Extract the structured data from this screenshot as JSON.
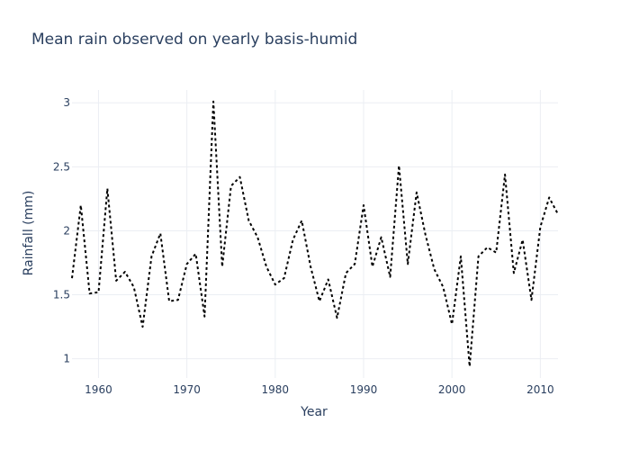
{
  "chart_data": {
    "type": "line",
    "title": "Mean rain observed on yearly basis-humid",
    "xlabel": "Year",
    "ylabel": "Rainfall (mm)",
    "xlim": [
      1957,
      2012
    ],
    "ylim": [
      0.85,
      3.1
    ],
    "x_ticks": [
      1960,
      1970,
      1980,
      1990,
      2000,
      2010
    ],
    "y_ticks": [
      1,
      1.5,
      2,
      2.5,
      3
    ],
    "grid": true,
    "line_color": "#000000",
    "line_style": "dotted",
    "series": [
      {
        "x": [
          1957,
          1958,
          1959,
          1960,
          1961,
          1962,
          1963,
          1964,
          1965,
          1966,
          1967,
          1968,
          1969,
          1970,
          1971,
          1972,
          1973,
          1974,
          1975,
          1976,
          1977,
          1978,
          1979,
          1980,
          1981,
          1982,
          1983,
          1984,
          1985,
          1986,
          1987,
          1988,
          1989,
          1990,
          1991,
          1992,
          1993,
          1994,
          1995,
          1996,
          1997,
          1998,
          1999,
          2000,
          2001,
          2002,
          2003,
          2004,
          2005,
          2006,
          2007,
          2008,
          2009,
          2010,
          2011,
          2012
        ],
        "values": [
          1.63,
          2.2,
          1.51,
          1.52,
          2.33,
          1.61,
          1.68,
          1.56,
          1.25,
          1.8,
          1.98,
          1.45,
          1.46,
          1.74,
          1.82,
          1.33,
          3.01,
          1.72,
          2.35,
          2.42,
          2.08,
          1.95,
          1.72,
          1.58,
          1.63,
          1.93,
          2.08,
          1.72,
          1.45,
          1.62,
          1.32,
          1.67,
          1.74,
          2.2,
          1.72,
          1.95,
          1.64,
          2.51,
          1.74,
          2.3,
          1.97,
          1.7,
          1.56,
          1.27,
          1.8,
          0.94,
          1.8,
          1.87,
          1.83,
          2.44,
          1.67,
          1.93,
          1.46,
          2.03,
          2.26,
          2.13
        ]
      }
    ]
  }
}
